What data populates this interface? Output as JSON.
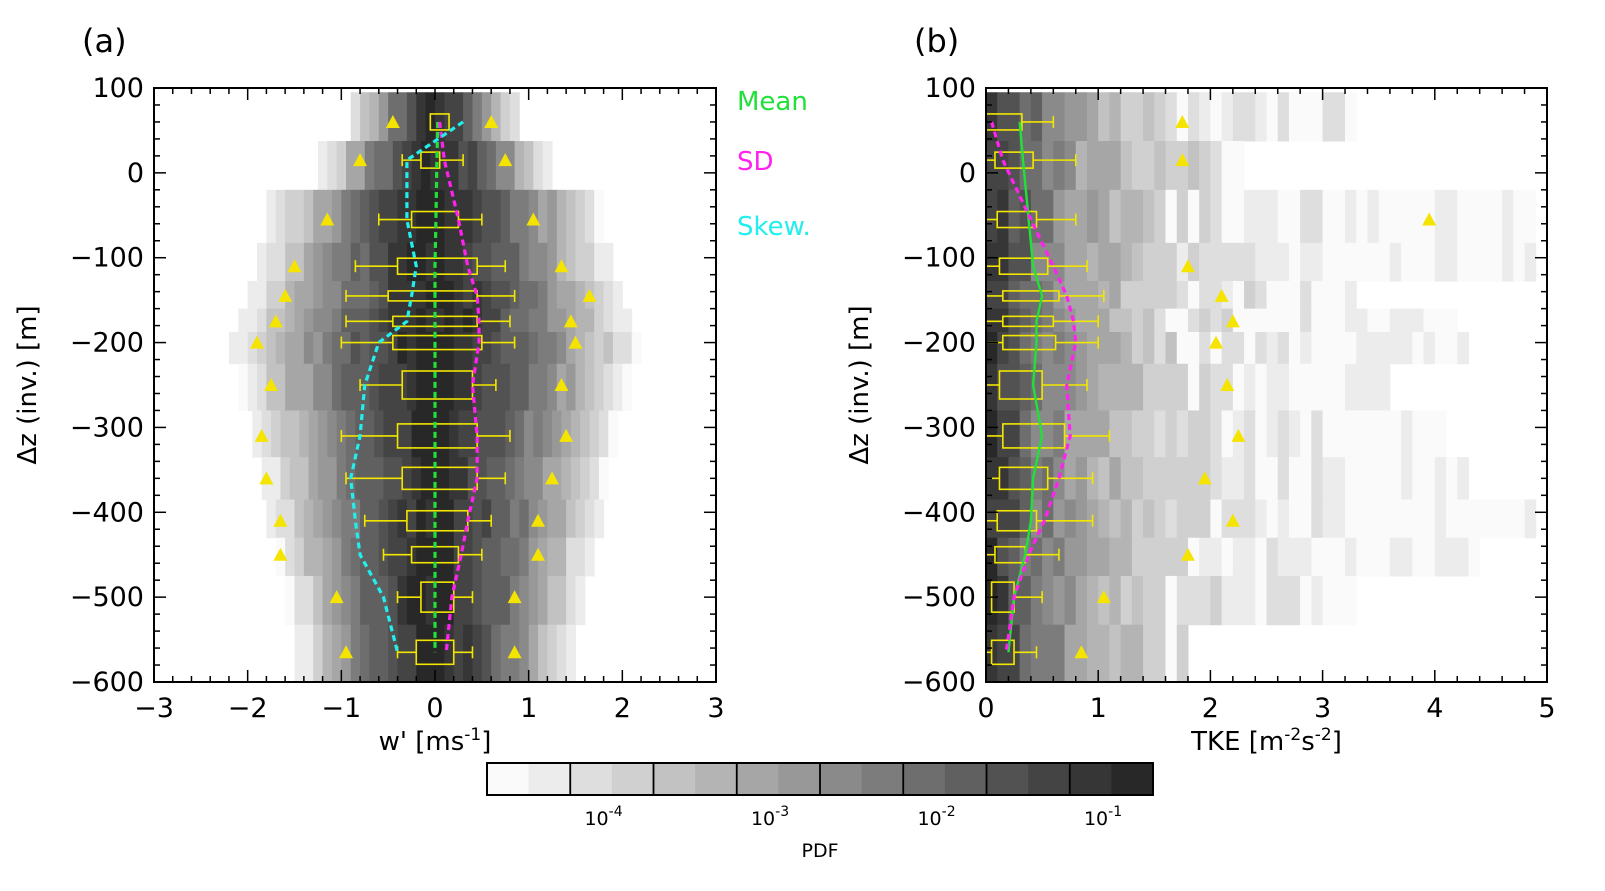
{
  "colors": {
    "mean": "#22e03a",
    "sd": "#ff22ee",
    "skew": "#22eeee",
    "box": "#f2e600",
    "triangle": "#f5e400"
  },
  "legend": [
    "Mean",
    "SD",
    "Skew."
  ],
  "colorbar": {
    "label": "PDF",
    "tick_labels": [
      {
        "base": "10",
        "exp": "-4",
        "value": 0.0001
      },
      {
        "base": "10",
        "exp": "-3",
        "value": 0.001
      },
      {
        "base": "10",
        "exp": "-2",
        "value": 0.01
      },
      {
        "base": "10",
        "exp": "-1",
        "value": 0.1
      }
    ],
    "levels": 16,
    "range_log10": [
      -4.7,
      -0.7
    ]
  },
  "chart_data": [
    {
      "panel": "(a)",
      "type": "heatmap",
      "xlabel": "w' [ms",
      "xlabel_exp": "-1",
      "xlabel_end": "]",
      "ylabel": "Δz (inv.) [m]",
      "xlim": [
        -3,
        3
      ],
      "ylim": [
        -600,
        100
      ],
      "xticks": [
        -3,
        -2,
        -1,
        0,
        1,
        2,
        3
      ],
      "yticks": [
        100,
        0,
        -100,
        -200,
        -300,
        -400,
        -500,
        -600
      ],
      "levels": [
        60,
        15,
        -55,
        -110,
        -145,
        -175,
        -200,
        -250,
        -310,
        -360,
        -410,
        -450,
        -500,
        -565
      ],
      "heatmap_halfwidth": [
        0.9,
        1.25,
        1.8,
        1.9,
        2.0,
        2.1,
        2.2,
        2.1,
        1.95,
        1.85,
        1.8,
        1.7,
        1.6,
        1.5
      ],
      "boxes": [
        {
          "y": 60,
          "whisker_lo": null,
          "q1": -0.05,
          "q3": 0.15,
          "whisker_hi": null,
          "triangles": [
            -0.45,
            0.6
          ]
        },
        {
          "y": 15,
          "whisker_lo": -0.35,
          "q1": -0.15,
          "q3": 0.05,
          "whisker_hi": 0.3,
          "triangles": [
            -0.8,
            0.75
          ]
        },
        {
          "y": -55,
          "whisker_lo": -0.6,
          "q1": -0.25,
          "q3": 0.25,
          "whisker_hi": 0.5,
          "triangles": [
            -1.15,
            1.05
          ]
        },
        {
          "y": -110,
          "whisker_lo": -0.85,
          "q1": -0.4,
          "q3": 0.45,
          "whisker_hi": 0.75,
          "triangles": [
            -1.5,
            1.35
          ]
        },
        {
          "y": -145,
          "whisker_lo": -0.95,
          "q1": -0.5,
          "q3": 0.45,
          "whisker_hi": 0.85,
          "triangles": [
            -1.6,
            1.65
          ]
        },
        {
          "y": -175,
          "whisker_lo": -0.95,
          "q1": -0.45,
          "q3": 0.45,
          "whisker_hi": 0.8,
          "triangles": [
            -1.7,
            1.45
          ]
        },
        {
          "y": -200,
          "whisker_lo": -1.0,
          "q1": -0.45,
          "q3": 0.5,
          "whisker_hi": 0.85,
          "triangles": [
            -1.9,
            1.5
          ]
        },
        {
          "y": -250,
          "whisker_lo": -0.8,
          "q1": -0.35,
          "q3": 0.4,
          "whisker_hi": 0.65,
          "triangles": [
            -1.75,
            1.35
          ]
        },
        {
          "y": -310,
          "whisker_lo": -1.0,
          "q1": -0.4,
          "q3": 0.45,
          "whisker_hi": 0.8,
          "triangles": [
            -1.85,
            1.4
          ]
        },
        {
          "y": -360,
          "whisker_lo": -0.95,
          "q1": -0.35,
          "q3": 0.45,
          "whisker_hi": 0.75,
          "triangles": [
            -1.8,
            1.25
          ]
        },
        {
          "y": -410,
          "whisker_lo": -0.75,
          "q1": -0.3,
          "q3": 0.35,
          "whisker_hi": 0.6,
          "triangles": [
            -1.65,
            1.1
          ]
        },
        {
          "y": -450,
          "whisker_lo": -0.55,
          "q1": -0.25,
          "q3": 0.25,
          "whisker_hi": 0.5,
          "triangles": [
            -1.65,
            1.1
          ]
        },
        {
          "y": -500,
          "whisker_lo": -0.4,
          "q1": -0.15,
          "q3": 0.2,
          "whisker_hi": 0.4,
          "triangles": [
            -1.05,
            0.85
          ]
        },
        {
          "y": -565,
          "whisker_lo": -0.4,
          "q1": -0.2,
          "q3": 0.2,
          "whisker_hi": 0.4,
          "triangles": [
            -0.95,
            0.85
          ]
        }
      ],
      "series": [
        {
          "name": "Mean",
          "x": [
            0.03,
            0.02,
            0.01,
            0.0,
            0.0,
            0.0,
            0.0,
            0.0,
            0.0,
            0.0,
            0.0,
            0.0,
            0.0,
            0.0
          ],
          "y": [
            60,
            15,
            -55,
            -110,
            -145,
            -175,
            -200,
            -250,
            -310,
            -360,
            -410,
            -450,
            -500,
            -565
          ]
        },
        {
          "name": "SD",
          "x": [
            0.05,
            0.1,
            0.25,
            0.35,
            0.45,
            0.47,
            0.47,
            0.4,
            0.45,
            0.45,
            0.35,
            0.28,
            0.18,
            0.12
          ],
          "y": [
            60,
            15,
            -55,
            -110,
            -145,
            -175,
            -200,
            -250,
            -310,
            -360,
            -410,
            -450,
            -500,
            -565
          ]
        },
        {
          "name": "Skew.",
          "x": [
            0.3,
            -0.3,
            -0.3,
            -0.2,
            -0.25,
            -0.3,
            -0.6,
            -0.75,
            -0.8,
            -0.9,
            -0.85,
            -0.8,
            -0.55,
            -0.4
          ],
          "y": [
            60,
            15,
            -55,
            -110,
            -145,
            -175,
            -200,
            -250,
            -310,
            -360,
            -410,
            -450,
            -500,
            -565
          ]
        }
      ]
    },
    {
      "panel": "(b)",
      "type": "heatmap",
      "xlabel": "TKE [m",
      "xlabel_exp1": "-2",
      "xlabel_mid": "s",
      "xlabel_exp2": "-2",
      "xlabel_end": "]",
      "ylabel": "Δz (inv.) [m]",
      "xlim": [
        0,
        5
      ],
      "ylim": [
        -600,
        100
      ],
      "xticks": [
        0,
        1,
        2,
        3,
        4,
        5
      ],
      "yticks": [
        100,
        0,
        -100,
        -200,
        -300,
        -400,
        -500,
        -600
      ],
      "levels": [
        60,
        15,
        -55,
        -110,
        -145,
        -175,
        -200,
        -250,
        -310,
        -360,
        -410,
        -450,
        -500,
        -565
      ],
      "heatmap_extent": [
        3.3,
        2.3,
        4.9,
        4.9,
        3.3,
        4.2,
        4.3,
        3.6,
        4.1,
        4.3,
        4.9,
        4.4,
        3.3,
        1.8
      ],
      "boxes": [
        {
          "y": 60,
          "whisker_lo": 0.0,
          "q1": 0.0,
          "q3": 0.32,
          "whisker_hi": 0.6,
          "triangles": [
            1.75
          ]
        },
        {
          "y": 15,
          "whisker_lo": 0.0,
          "q1": 0.08,
          "q3": 0.42,
          "whisker_hi": 0.8,
          "triangles": [
            1.75
          ]
        },
        {
          "y": -55,
          "whisker_lo": 0.0,
          "q1": 0.1,
          "q3": 0.45,
          "whisker_hi": 0.8,
          "triangles": [
            3.95
          ]
        },
        {
          "y": -110,
          "whisker_lo": 0.0,
          "q1": 0.12,
          "q3": 0.55,
          "whisker_hi": 0.9,
          "triangles": [
            1.8
          ]
        },
        {
          "y": -145,
          "whisker_lo": 0.0,
          "q1": 0.15,
          "q3": 0.65,
          "whisker_hi": 1.05,
          "triangles": [
            2.1
          ]
        },
        {
          "y": -175,
          "whisker_lo": 0.0,
          "q1": 0.15,
          "q3": 0.6,
          "whisker_hi": 1.0,
          "triangles": [
            2.2
          ]
        },
        {
          "y": -200,
          "whisker_lo": 0.0,
          "q1": 0.15,
          "q3": 0.62,
          "whisker_hi": 1.0,
          "triangles": [
            2.05
          ]
        },
        {
          "y": -250,
          "whisker_lo": 0.0,
          "q1": 0.12,
          "q3": 0.5,
          "whisker_hi": 0.9,
          "triangles": [
            2.15
          ]
        },
        {
          "y": -310,
          "whisker_lo": 0.0,
          "q1": 0.15,
          "q3": 0.7,
          "whisker_hi": 1.1,
          "triangles": [
            2.25
          ]
        },
        {
          "y": -360,
          "whisker_lo": 0.0,
          "q1": 0.12,
          "q3": 0.55,
          "whisker_hi": 0.95,
          "triangles": [
            1.95
          ]
        },
        {
          "y": -410,
          "whisker_lo": 0.0,
          "q1": 0.1,
          "q3": 0.45,
          "whisker_hi": 0.95,
          "triangles": [
            2.2
          ]
        },
        {
          "y": -450,
          "whisker_lo": 0.0,
          "q1": 0.08,
          "q3": 0.35,
          "whisker_hi": 0.65,
          "triangles": [
            1.8
          ]
        },
        {
          "y": -500,
          "whisker_lo": 0.0,
          "q1": 0.05,
          "q3": 0.25,
          "whisker_hi": 0.5,
          "triangles": [
            1.05
          ]
        },
        {
          "y": -565,
          "whisker_lo": 0.0,
          "q1": 0.05,
          "q3": 0.25,
          "whisker_hi": 0.45,
          "triangles": [
            0.85
          ]
        }
      ],
      "series": [
        {
          "name": "Mean",
          "style": "solid",
          "x": [
            0.3,
            0.33,
            0.38,
            0.42,
            0.5,
            0.45,
            0.45,
            0.42,
            0.5,
            0.42,
            0.4,
            0.35,
            0.25,
            0.2
          ],
          "y": [
            60,
            15,
            -55,
            -110,
            -145,
            -175,
            -200,
            -250,
            -310,
            -360,
            -410,
            -450,
            -500,
            -565
          ]
        },
        {
          "name": "SD",
          "style": "dashed",
          "x": [
            0.05,
            0.15,
            0.4,
            0.6,
            0.72,
            0.78,
            0.8,
            0.72,
            0.75,
            0.65,
            0.52,
            0.38,
            0.25,
            0.18
          ],
          "y": [
            60,
            15,
            -55,
            -110,
            -145,
            -175,
            -200,
            -250,
            -310,
            -360,
            -410,
            -450,
            -500,
            -565
          ]
        }
      ]
    }
  ]
}
